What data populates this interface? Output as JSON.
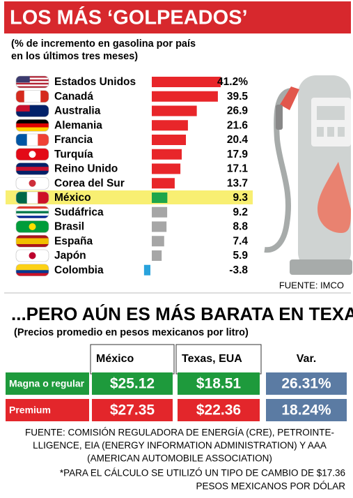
{
  "chart_data": {
    "type": "bar",
    "orientation": "horizontal",
    "title": "LOS MÁS ‘GOLPEADOS’",
    "subtitle": [
      "(% de incremento en gasolina por país",
      "en los últimos tres meses)"
    ],
    "categories": [
      "Estados Unidos",
      "Canadá",
      "Australia",
      "Alemania",
      "Francia",
      "Turquía",
      "Reino Unido",
      "Corea del Sur",
      "México",
      "Sudáfrica",
      "Brasil",
      "España",
      "Japón",
      "Colombia"
    ],
    "values": [
      41.2,
      39.5,
      26.9,
      21.6,
      20.4,
      17.9,
      17.1,
      13.7,
      9.3,
      9.2,
      8.8,
      7.4,
      5.9,
      -3.8
    ],
    "value_labels": [
      "41.2%",
      "39.5",
      "26.9",
      "21.6",
      "20.4",
      "17.9",
      "17.1",
      "13.7",
      "9.3",
      "9.2",
      "8.8",
      "7.4",
      "5.9",
      "-3.8"
    ],
    "colors": [
      "#e8262a",
      "#e8262a",
      "#e8262a",
      "#e8262a",
      "#e8262a",
      "#e8262a",
      "#e8262a",
      "#e8262a",
      "#1fa64a",
      "#a6a6a6",
      "#a6a6a6",
      "#a6a6a6",
      "#a6a6a6",
      "#29a3dc"
    ],
    "highlight": "México",
    "highlight_color": "#f8ef72",
    "source": "FUENTE: IMCO"
  },
  "comparison": {
    "title": "...PERO AÚN ES MÁS BARATA EN TEXAS",
    "subtitle": "(Precios promedio en pesos mexicanos por litro)",
    "columns": [
      "México",
      "Texas, EUA",
      "Var."
    ],
    "rows": [
      {
        "label": "Magna o regular",
        "cells": [
          "$25.12",
          "$18.51",
          "26.31%"
        ],
        "color": "#1e9a3c"
      },
      {
        "label": "Premium",
        "cells": [
          "$27.35",
          "$22.36",
          "18.24%"
        ],
        "color": "#e3262b"
      }
    ],
    "var_color": "#5b7ba3"
  },
  "footer": {
    "source": [
      "FUENTE: COMISIÓN REGULADORA DE ENERGÍA (CRE), PETROINTE-",
      "LLIGENCE, EIA (ENERGY INFORMATION ADMINISTRATION) Y AAA",
      "(AMERICAN AUTOMOBILE ASSOCIATION)"
    ],
    "note": [
      "*PARA EL CÁLCULO SE UTILIZÓ UN TIPO DE CAMBIO DE $17.36",
      "PESOS MEXICANOS POR DÓLAR"
    ]
  }
}
